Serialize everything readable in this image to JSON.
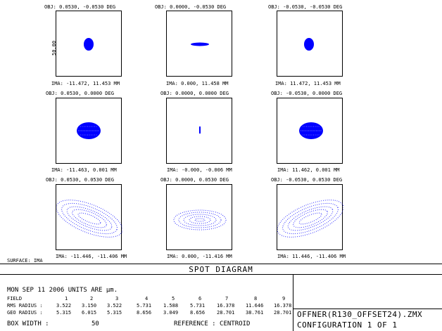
{
  "scale_label": "50.00",
  "surface_label": "SURFACE: IMA",
  "panels": [
    {
      "obj": "OBJ: 0.0530, -0.0530 DEG",
      "ima": "IMA: -11.472, 11.453 MM"
    },
    {
      "obj": "OBJ: 0.0000, -0.0530 DEG",
      "ima": "IMA: 0.000, 11.458 MM"
    },
    {
      "obj": "OBJ: -0.0530, -0.0530 DEG",
      "ima": "IMA: 11.472, 11.453 MM"
    },
    {
      "obj": "OBJ: 0.0530, 0.0000 DEG",
      "ima": "IMA: -11.463, 0.001 MM"
    },
    {
      "obj": "OBJ: 0.0000, 0.0000 DEG",
      "ima": "IMA: -0.000, -0.006 MM"
    },
    {
      "obj": "OBJ: -0.0530, 0.0000 DEG",
      "ima": "IMA: 11.462, 0.001 MM"
    },
    {
      "obj": "OBJ: 0.0530, 0.0530 DEG",
      "ima": "IMA: -11.446, -11.406 MM"
    },
    {
      "obj": "OBJ: 0.0000, 0.0530 DEG",
      "ima": "IMA: 0.000, -11.416 MM"
    },
    {
      "obj": "OBJ: -0.0530, 0.0530 DEG",
      "ima": "IMA: 11.446, -11.406 MM"
    }
  ],
  "footer": {
    "title": "SPOT DIAGRAM",
    "date_line": "MON SEP 11 2006  UNITS ARE µm.",
    "field_label": "FIELD",
    "rms_label": "RMS RADIUS :",
    "geo_label": "GEO RADIUS :",
    "fields": [
      "1",
      "2",
      "3",
      "4",
      "5",
      "6",
      "7",
      "8",
      "9"
    ],
    "rms": [
      "3.522",
      "3.150",
      "3.522",
      "5.731",
      "1.588",
      "5.731",
      "16.378",
      "11.646",
      "16.378"
    ],
    "geo": [
      "5.315",
      "6.015",
      "5.315",
      "8.656",
      "3.049",
      "8.656",
      "28.701",
      "38.761",
      "28.701"
    ],
    "box_width_label": "BOX WIDTH :",
    "box_width_value": "50",
    "reference": "REFERENCE  : CENTROID",
    "file": "OFFNER(R130_OFFSET24).ZMX",
    "config": "CONFIGURATION 1 OF 1"
  },
  "colors": {
    "spot": "#0000ff",
    "line": "#000000"
  }
}
